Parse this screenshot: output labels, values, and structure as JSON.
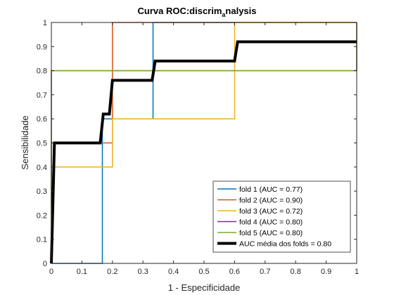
{
  "chart_data": {
    "type": "line",
    "title_main": "Curva ROC:discrim",
    "title_sub": "a",
    "title_rest": "nalysis",
    "xlabel": "1 - Especificidade",
    "ylabel": "Sensibilidade",
    "xlim": [
      0,
      1
    ],
    "ylim": [
      0,
      1
    ],
    "xticks": [
      "0",
      "0.1",
      "0.2",
      "0.3",
      "0.4",
      "0.5",
      "0.6",
      "0.7",
      "0.8",
      "0.9",
      "1"
    ],
    "yticks": [
      "0",
      "0.1",
      "0.2",
      "0.3",
      "0.4",
      "0.5",
      "0.6",
      "0.7",
      "0.8",
      "0.9",
      "1"
    ],
    "legend_position": "bottom-right",
    "series": [
      {
        "name": "fold 1 (AUC = 0.77)",
        "color": "#0072bd",
        "width": 1.5,
        "x": [
          0,
          0.167,
          0.167,
          0.333,
          0.333,
          0.333,
          1
        ],
        "y": [
          0,
          0,
          0.6,
          0.6,
          0.6,
          1,
          1
        ]
      },
      {
        "name": "fold 2 (AUC = 0.90)",
        "color": "#d95319",
        "width": 1.5,
        "x": [
          0,
          0,
          0.2,
          0.2,
          0.6,
          0.6,
          1
        ],
        "y": [
          0,
          0.5,
          0.5,
          1,
          1,
          1,
          1
        ]
      },
      {
        "name": "fold 3 (AUC = 0.72)",
        "color": "#edb120",
        "width": 1.5,
        "x": [
          0,
          0,
          0.2,
          0.2,
          0.6,
          0.6,
          1
        ],
        "y": [
          0,
          0.4,
          0.4,
          0.6,
          0.6,
          1,
          1
        ]
      },
      {
        "name": "fold 4 (AUC = 0.80)",
        "color": "#7e2f8e",
        "width": 1.5,
        "x": [
          0,
          0,
          1,
          1
        ],
        "y": [
          0,
          0.8,
          0.8,
          1
        ]
      },
      {
        "name": "fold 5 (AUC = 0.80)",
        "color": "#77ac30",
        "width": 1.5,
        "x": [
          0,
          0,
          1,
          1
        ],
        "y": [
          0,
          0.8,
          0.8,
          1
        ]
      },
      {
        "name": "AUC média dos folds = 0.80",
        "color": "#000000",
        "width": 4,
        "x": [
          0,
          0.01,
          0.16,
          0.17,
          0.19,
          0.2,
          0.33,
          0.34,
          0.6,
          0.61,
          1
        ],
        "y": [
          0,
          0.5,
          0.5,
          0.62,
          0.62,
          0.76,
          0.76,
          0.84,
          0.84,
          0.92,
          0.92
        ]
      }
    ]
  }
}
